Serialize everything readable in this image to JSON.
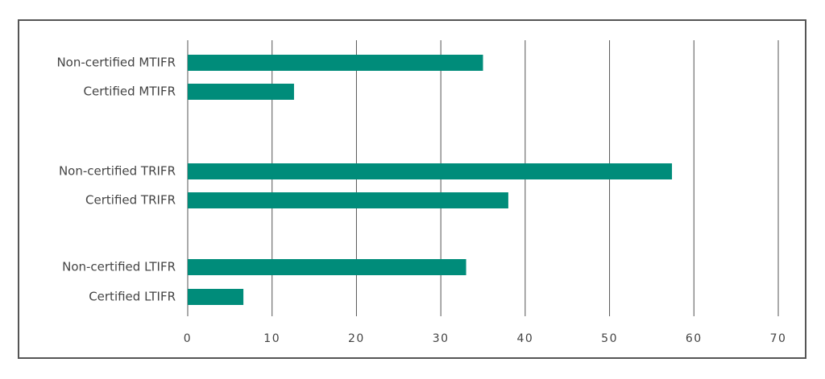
{
  "chart_data": {
    "type": "bar",
    "orientation": "horizontal",
    "categories": [
      "Non-certified MTIFR",
      "Certified MTIFR",
      "Non-certified TRIFR",
      "Certified TRIFR",
      "Non-certified LTIFR",
      "Certified LTIFR"
    ],
    "values": [
      35,
      12.6,
      57.4,
      38,
      33,
      6.6
    ],
    "color": "#008c7a",
    "xlim": [
      0,
      70
    ],
    "xticks": [
      0,
      10,
      20,
      30,
      40,
      50,
      60,
      70
    ],
    "grid": true
  }
}
